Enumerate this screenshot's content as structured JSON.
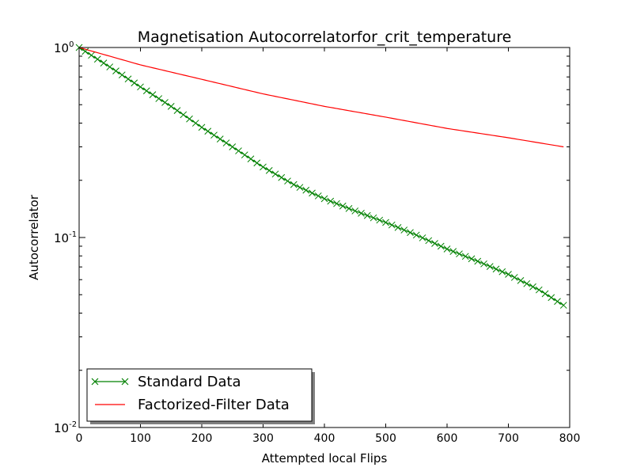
{
  "chart_data": {
    "type": "line",
    "title": "Magnetisation Autocorrelatorfor_crit_temperature",
    "xlabel": "Attempted local Flips",
    "ylabel": "Autocorrelator",
    "xlim": [
      0,
      800
    ],
    "ylim": [
      0.01,
      1
    ],
    "yscale": "log",
    "grid": false,
    "legend_position": "lower-left",
    "x_ticks": [
      "0",
      "100",
      "200",
      "300",
      "400",
      "500",
      "600",
      "700",
      "800"
    ],
    "y_ticks": [
      {
        "base": "10",
        "exp": "0"
      },
      {
        "base": "10",
        "exp": "-1"
      },
      {
        "base": "10",
        "exp": "-2"
      }
    ],
    "series": [
      {
        "name": "Standard Data",
        "color": "#008000",
        "marker": "x",
        "points": [
          [
            0,
            1.0
          ],
          [
            50,
            0.79
          ],
          [
            100,
            0.62
          ],
          [
            150,
            0.49
          ],
          [
            200,
            0.38
          ],
          [
            250,
            0.3
          ],
          [
            300,
            0.235
          ],
          [
            350,
            0.19
          ],
          [
            400,
            0.16
          ],
          [
            450,
            0.138
          ],
          [
            500,
            0.12
          ],
          [
            550,
            0.103
          ],
          [
            600,
            0.087
          ],
          [
            650,
            0.075
          ],
          [
            700,
            0.064
          ],
          [
            750,
            0.053
          ],
          [
            790,
            0.044
          ]
        ]
      },
      {
        "name": "Factorized-Filter Data",
        "color": "#ff0000",
        "marker": "none",
        "points": [
          [
            0,
            1.0
          ],
          [
            100,
            0.81
          ],
          [
            200,
            0.68
          ],
          [
            300,
            0.57
          ],
          [
            400,
            0.49
          ],
          [
            500,
            0.43
          ],
          [
            600,
            0.375
          ],
          [
            700,
            0.335
          ],
          [
            790,
            0.3
          ]
        ]
      }
    ]
  }
}
